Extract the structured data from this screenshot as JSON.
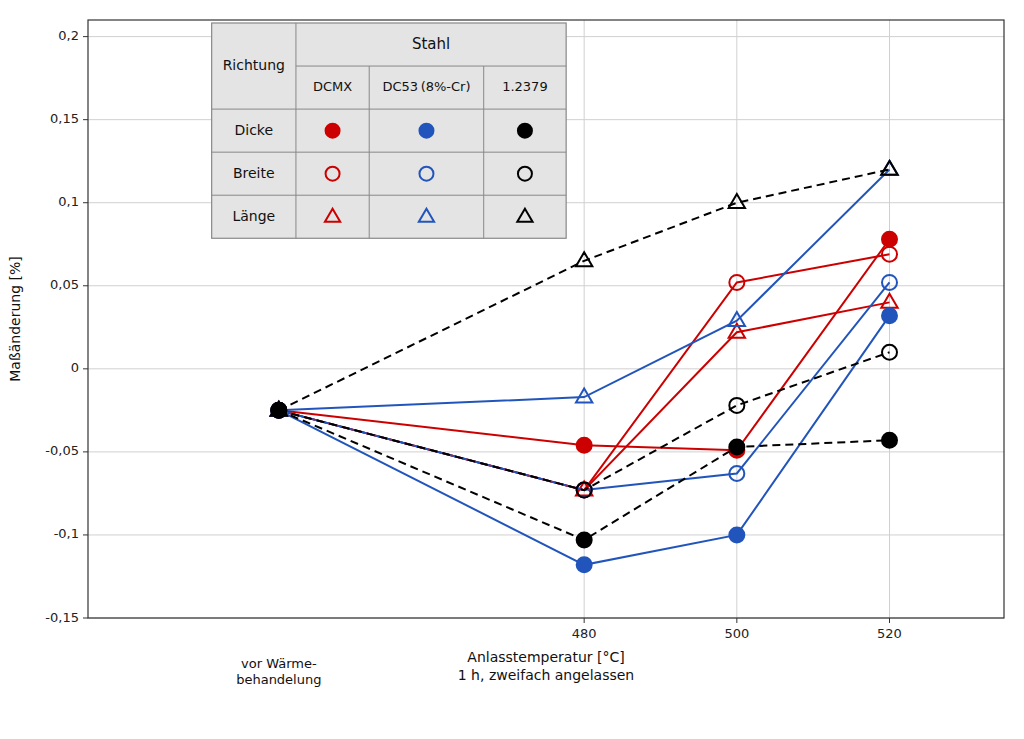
{
  "chart_data": {
    "type": "line",
    "x_label": "Anlasstemperatur [°C]\n1 h, zweifach angelassen",
    "y_label": "Maßänderung [%]",
    "x": [
      440,
      480,
      500,
      520
    ],
    "xlim": [
      415,
      535
    ],
    "xticks": [
      480,
      500,
      520
    ],
    "ylim": [
      -0.15,
      0.21
    ],
    "yticks": [
      {
        "value": -0.15,
        "label": "-0,15"
      },
      {
        "value": -0.1,
        "label": "-0,1"
      },
      {
        "value": -0.05,
        "label": "-0,05"
      },
      0,
      {
        "value": 0.05,
        "label": "0,05"
      },
      {
        "value": 0.1,
        "label": "0,1"
      },
      {
        "value": 0.15,
        "label": "0,15"
      },
      {
        "value": 0.2,
        "label": "0,2"
      }
    ],
    "grid": true,
    "legend": "upper left",
    "legend_table": {
      "column_header": "Stahl",
      "row_header": "Richtung",
      "columns": [
        "DCMX",
        "DC53 (8%-Cr)",
        "1.2379"
      ],
      "rows": [
        "Dicke",
        "Breite",
        "Länge"
      ]
    },
    "annotations": [
      {
        "text": "vor Wärme-\nbehandelung",
        "x": 440
      }
    ],
    "series": [
      {
        "color": "#cc0000",
        "marker": "circle",
        "line_style": "solid",
        "values": [
          -0.025,
          -0.046,
          -0.049,
          0.078
        ]
      },
      {
        "color": "#cc0000",
        "marker": "circle-open",
        "line_style": "solid",
        "values": [
          -0.025,
          -0.073,
          0.052,
          0.069
        ]
      },
      {
        "color": "#cc0000",
        "marker": "triangle-open",
        "line_style": "solid",
        "values": [
          -0.025,
          -0.073,
          0.022,
          0.04
        ]
      },
      {
        "color": "#2255bb",
        "marker": "circle",
        "line_style": "solid",
        "values": [
          -0.025,
          -0.118,
          -0.1,
          0.032
        ]
      },
      {
        "color": "#2255bb",
        "marker": "circle-open",
        "line_style": "solid",
        "values": [
          -0.025,
          -0.073,
          -0.063,
          0.052
        ]
      },
      {
        "color": "#2255bb",
        "marker": "triangle-open",
        "line_style": "solid",
        "values": [
          -0.025,
          -0.017,
          0.029,
          0.12
        ]
      },
      {
        "color": "#000000",
        "marker": "circle",
        "line_style": "dashed",
        "values": [
          -0.025,
          -0.103,
          -0.047,
          -0.043
        ]
      },
      {
        "color": "#000000",
        "marker": "circle-open",
        "line_style": "dashed",
        "values": [
          -0.025,
          -0.073,
          -0.022,
          0.01
        ]
      },
      {
        "color": "#000000",
        "marker": "triangle-open",
        "line_style": "dashed",
        "values": [
          -0.025,
          0.065,
          0.1,
          0.12
        ]
      }
    ]
  }
}
